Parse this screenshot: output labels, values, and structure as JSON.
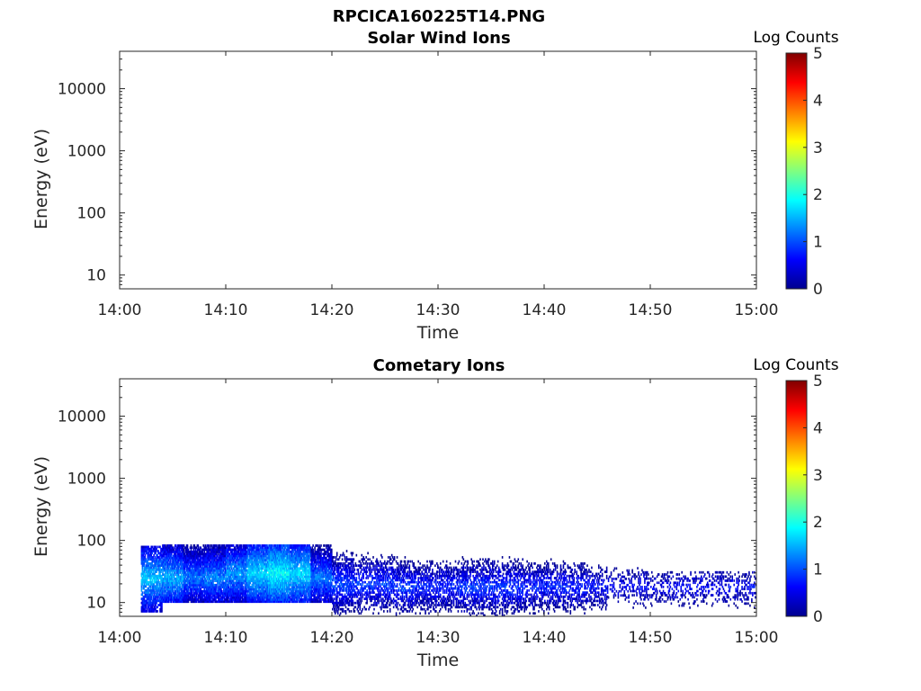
{
  "figure_title": "RPCICA160225T14.PNG",
  "colorbar": {
    "label": "Log Counts",
    "ticks": [
      "0",
      "1",
      "2",
      "3",
      "4",
      "5"
    ],
    "min": 0,
    "max": 5,
    "colormap": "jet"
  },
  "chart_data": [
    {
      "type": "heatmap",
      "title": "Solar Wind Ions",
      "xlabel": "Time",
      "ylabel": "Energy (eV)",
      "xlim": [
        "14:00",
        "15:00"
      ],
      "ylim": [
        6,
        40000
      ],
      "yscale": "log",
      "xticks": [
        "14:00",
        "14:10",
        "14:20",
        "14:30",
        "14:40",
        "14:50",
        "15:00"
      ],
      "yticks": [
        {
          "value": 10,
          "label": "10"
        },
        {
          "value": 100,
          "label": "100"
        },
        {
          "value": 1000,
          "label": "1000"
        },
        {
          "value": 10000,
          "label": "10000"
        }
      ],
      "data": [],
      "grid": false
    },
    {
      "type": "heatmap",
      "title": "Cometary Ions",
      "xlabel": "Time",
      "ylabel": "Energy (eV)",
      "xlim": [
        "14:00",
        "15:00"
      ],
      "ylim": [
        6,
        40000
      ],
      "yscale": "log",
      "xticks": [
        "14:00",
        "14:10",
        "14:20",
        "14:30",
        "14:40",
        "14:50",
        "15:00"
      ],
      "yticks": [
        {
          "value": 10,
          "label": "10"
        },
        {
          "value": 100,
          "label": "100"
        },
        {
          "value": 1000,
          "label": "1000"
        },
        {
          "value": 10000,
          "label": "10000"
        }
      ],
      "grid": false,
      "data_columns": [
        "time_minutes_after_14:00",
        "energy_low_eV",
        "energy_high_eV",
        "peak_energy_eV",
        "peak_log_counts",
        "fill_fraction"
      ],
      "data": [
        [
          3,
          7,
          80,
          25,
          1.6,
          0.8
        ],
        [
          5,
          10,
          80,
          25,
          1.5,
          0.9
        ],
        [
          7,
          10,
          80,
          25,
          1.2,
          0.9
        ],
        [
          9,
          10,
          80,
          25,
          1.3,
          0.9
        ],
        [
          11,
          10,
          80,
          30,
          1.4,
          0.9
        ],
        [
          13,
          10,
          80,
          30,
          1.7,
          0.9
        ],
        [
          15,
          10,
          80,
          30,
          1.9,
          0.95
        ],
        [
          17,
          10,
          80,
          30,
          1.7,
          0.9
        ],
        [
          19,
          10,
          80,
          25,
          1.2,
          0.85
        ],
        [
          21,
          6,
          80,
          20,
          1.0,
          0.65
        ],
        [
          23,
          6,
          70,
          20,
          0.9,
          0.5
        ],
        [
          25,
          6,
          80,
          20,
          0.9,
          0.55
        ],
        [
          27,
          6,
          80,
          18,
          0.9,
          0.55
        ],
        [
          29,
          6,
          80,
          18,
          0.8,
          0.55
        ],
        [
          31,
          6,
          80,
          18,
          0.8,
          0.55
        ],
        [
          33,
          6,
          80,
          18,
          0.9,
          0.55
        ],
        [
          35,
          6,
          80,
          18,
          0.9,
          0.55
        ],
        [
          37,
          6,
          80,
          18,
          0.9,
          0.55
        ],
        [
          39,
          6,
          80,
          18,
          0.8,
          0.5
        ],
        [
          41,
          6,
          80,
          18,
          0.8,
          0.5
        ],
        [
          43,
          6,
          80,
          18,
          0.8,
          0.45
        ],
        [
          45,
          6,
          70,
          18,
          0.7,
          0.4
        ],
        [
          47,
          10,
          35,
          18,
          0.6,
          0.3
        ],
        [
          49,
          8,
          35,
          18,
          0.6,
          0.3
        ],
        [
          51,
          8,
          30,
          18,
          0.6,
          0.3
        ],
        [
          53,
          8,
          30,
          18,
          0.6,
          0.3
        ],
        [
          55,
          8,
          30,
          18,
          0.6,
          0.3
        ],
        [
          57,
          8,
          30,
          18,
          0.6,
          0.3
        ],
        [
          59,
          8,
          30,
          18,
          0.6,
          0.3
        ]
      ]
    }
  ]
}
